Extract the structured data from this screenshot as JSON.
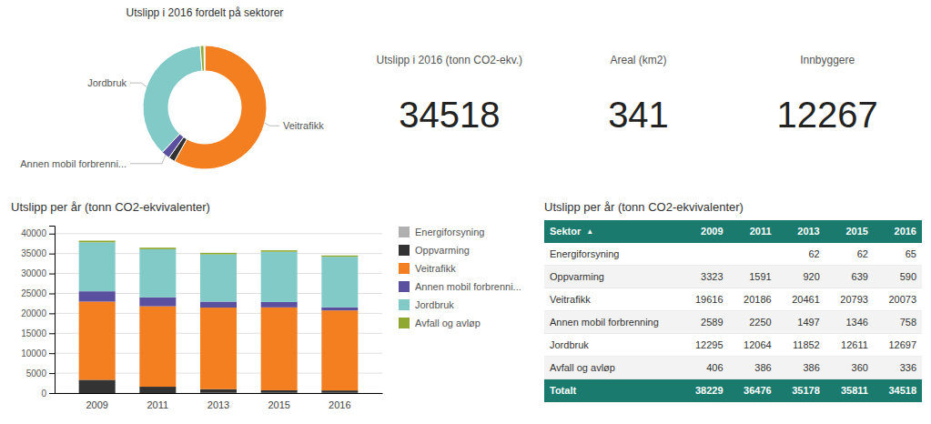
{
  "chart_data": [
    {
      "type": "donut",
      "title": "Utslipp i 2016 fordelt på sektorer",
      "categories": [
        "Veitrafikk",
        null,
        "Annen mobil forbrenni...",
        "Jordbruk",
        null,
        null
      ],
      "values": [
        20073,
        590,
        758,
        12697,
        336,
        65
      ],
      "colors": [
        "#f47f20",
        "#333333",
        "#5b4fa0",
        "#82cac8",
        "#8ea830",
        "#b0b0b0"
      ]
    },
    {
      "type": "kpi",
      "categories": [
        "Utslipp i 2016 (tonn CO2-ekv.)",
        "Areal (km2)",
        "Innbyggere"
      ],
      "values": [
        34518,
        341,
        12267
      ]
    },
    {
      "type": "bar",
      "stacked": true,
      "title": "Utslipp per år (tonn CO2-ekvivalenter)",
      "categories": [
        "2009",
        "2011",
        "2013",
        "2015",
        "2016"
      ],
      "series": [
        {
          "name": "Energiforsyning",
          "color": "#b0b0b0",
          "values": [
            0,
            0,
            62,
            62,
            65
          ]
        },
        {
          "name": "Oppvarming",
          "color": "#333333",
          "values": [
            3323,
            1591,
            920,
            639,
            590
          ]
        },
        {
          "name": "Veitrafikk",
          "color": "#f47f20",
          "values": [
            19616,
            20186,
            20461,
            20793,
            20073
          ]
        },
        {
          "name": "Annen mobil forbrenni...",
          "color": "#5b4fa0",
          "values": [
            2589,
            2250,
            1497,
            1346,
            758
          ]
        },
        {
          "name": "Jordbruk",
          "color": "#82cac8",
          "values": [
            12295,
            12064,
            11852,
            12611,
            12697
          ]
        },
        {
          "name": "Avfall og avløp",
          "color": "#8ea830",
          "values": [
            406,
            386,
            386,
            360,
            336
          ]
        }
      ],
      "ylim": [
        0,
        42000
      ],
      "yticks": [
        0,
        5000,
        10000,
        15000,
        20000,
        25000,
        30000,
        35000,
        40000
      ],
      "grid": true,
      "legend": "right"
    },
    {
      "type": "table",
      "title": "Utslipp per år (tonn CO2-ekvivalenter)",
      "color": "#1a7a6e",
      "columns": [
        "Sektor",
        "2009",
        "2011",
        "2013",
        "2015",
        "2016"
      ],
      "sort_indicator": "▲",
      "rows": [
        {
          "name": "Energiforsyning",
          "values": [
            null,
            null,
            62,
            62,
            65
          ]
        },
        {
          "name": "Oppvarming",
          "values": [
            3323,
            1591,
            920,
            639,
            590
          ]
        },
        {
          "name": "Veitrafikk",
          "values": [
            19616,
            20186,
            20461,
            20793,
            20073
          ]
        },
        {
          "name": "Annen mobil forbrenning",
          "values": [
            2589,
            2250,
            1497,
            1346,
            758
          ]
        },
        {
          "name": "Jordbruk",
          "values": [
            12295,
            12064,
            11852,
            12611,
            12697
          ]
        },
        {
          "name": "Avfall og avløp",
          "values": [
            406,
            386,
            386,
            360,
            336
          ]
        }
      ],
      "totals": {
        "name": "Totalt",
        "values": [
          38229,
          36476,
          35178,
          35811,
          34518
        ]
      }
    }
  ]
}
